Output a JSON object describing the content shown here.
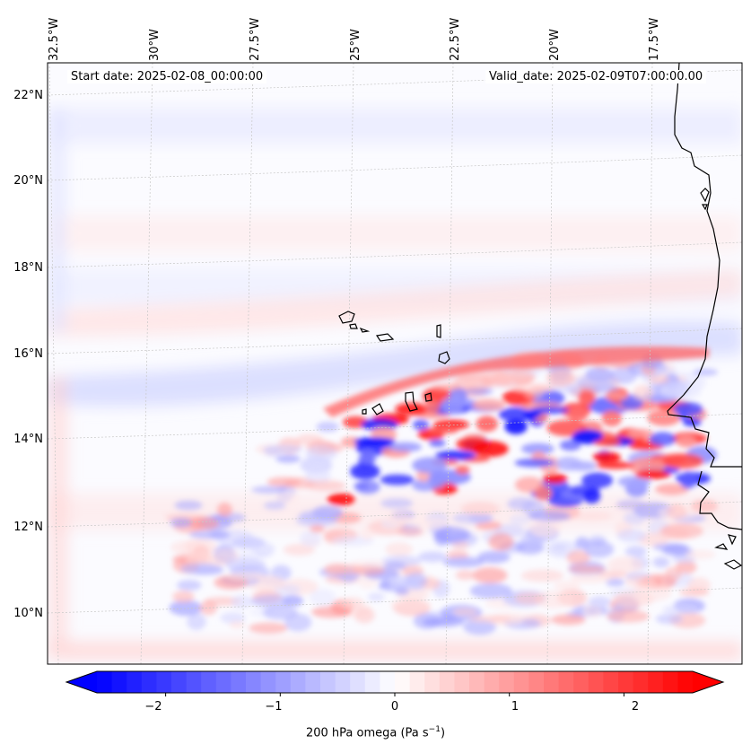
{
  "map": {
    "start_date": "Start date: 2025-02-08_00:00:00",
    "valid_date": "Valid_date: 2025-02-09T07:00:00.00",
    "lon_labels": [
      "32.5°W",
      "30°W",
      "27.5°W",
      "25°W",
      "22.5°W",
      "20°W",
      "17.5°W"
    ],
    "lat_labels": [
      "22°N",
      "20°N",
      "18°N",
      "16°N",
      "14°N",
      "12°N",
      "10°N"
    ],
    "extent": {
      "lon_min": -32.8,
      "lon_max": -15.5,
      "lat_min": 8.9,
      "lat_max": 22.8
    },
    "coastline_color": "#000000",
    "gridline_color": "#c8c8c8"
  },
  "colorbar": {
    "label_prefix": "200 hPa omega (Pa s",
    "label_exp": "−1",
    "label_suffix": ")",
    "ticks": [
      "−2",
      "−1",
      "0",
      "1",
      "2"
    ],
    "tick_values": [
      -2,
      -1,
      0,
      1,
      2
    ],
    "vmin": -2.6,
    "vmax": 2.6,
    "extend": "both",
    "cmap": "bwr",
    "color_low": "#0000ff",
    "color_mid": "#ffffff",
    "color_high": "#ff0000"
  }
}
